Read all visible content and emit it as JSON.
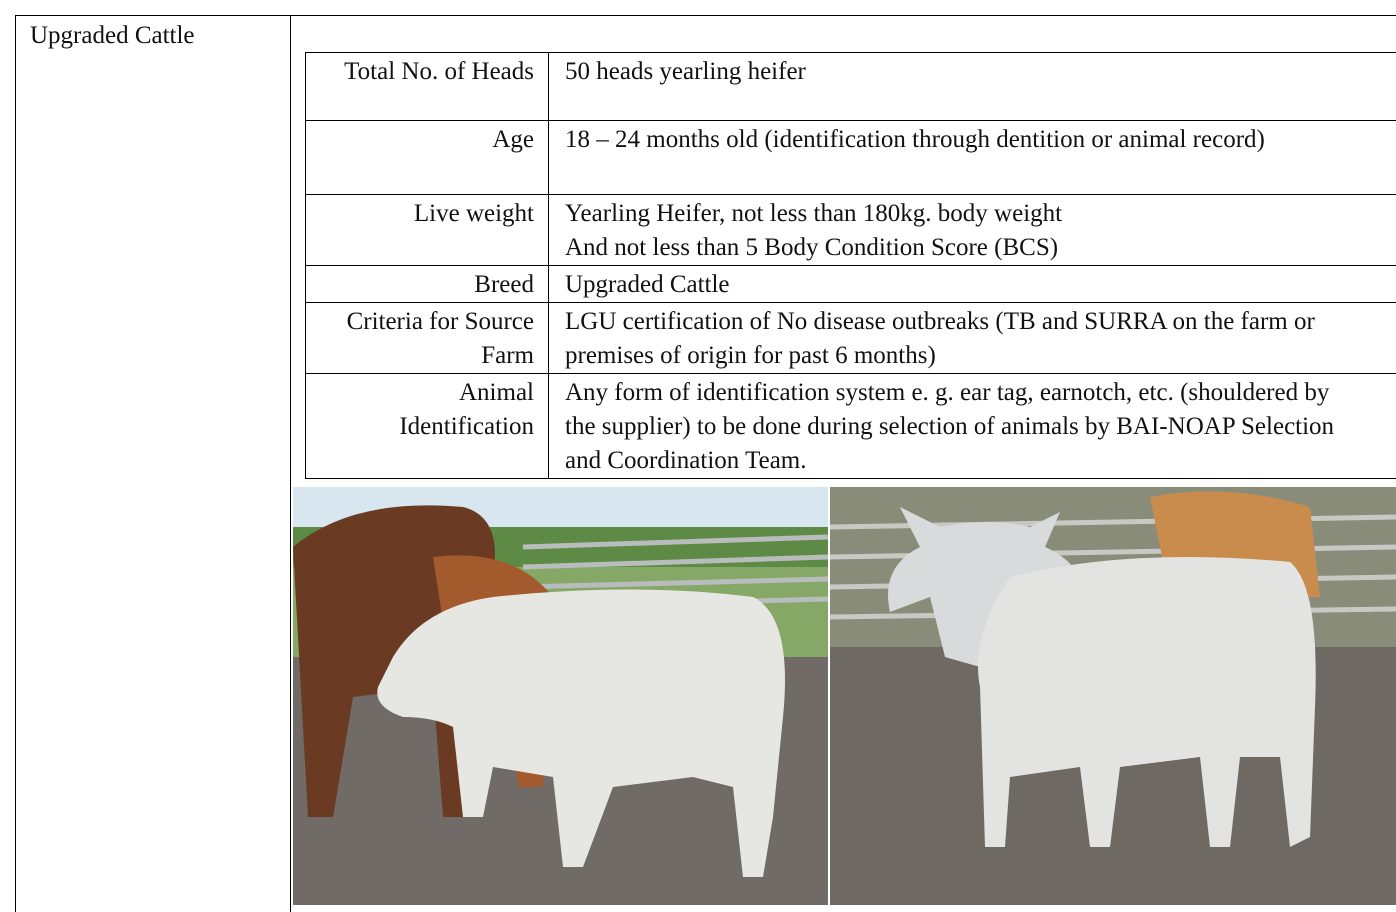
{
  "outer": {
    "label": "Upgraded Cattle"
  },
  "table": {
    "rows": [
      [
        "Total No. of Heads",
        [
          "50 heads yearling heifer"
        ]
      ],
      [
        "Age",
        [
          "18 – 24 months old (identification through dentition or animal record)"
        ]
      ],
      [
        "Live weight",
        [
          "Yearling Heifer, not less than 180kg. body weight",
          "And not less than 5 Body Condition Score (BCS)"
        ]
      ],
      [
        "Breed",
        [
          "Upgraded Cattle"
        ]
      ],
      [
        "Criteria for Source Farm",
        [
          "LGU certification of No disease outbreaks (TB and SURRA on the farm or premises of origin for past 6 months)"
        ]
      ],
      [
        "Animal Identification",
        [
          "Any form of identification system e. g. ear tag, earnotch, etc. (shouldered by the supplier) to be done during selection of animals by BAI-NOAP Selection and Coordination Team."
        ]
      ]
    ]
  }
}
